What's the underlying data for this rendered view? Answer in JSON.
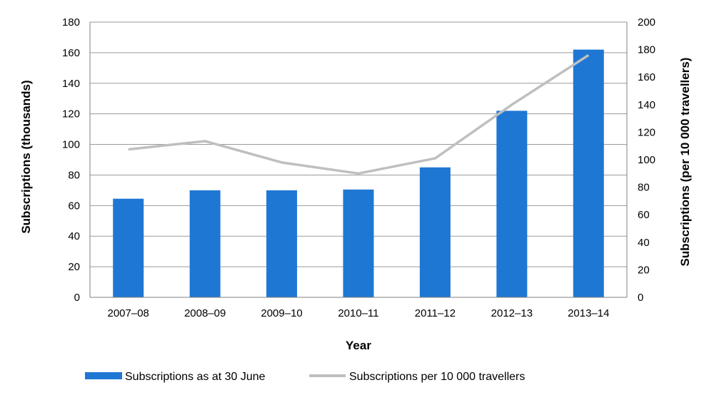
{
  "chart_data": {
    "type": "bar",
    "categories": [
      "2007–08",
      "2008–09",
      "2009–10",
      "2010–11",
      "2011–12",
      "2012–13",
      "2013–14"
    ],
    "xlabel": "Year",
    "ylabel": "Subscriptions (thousands)",
    "y2label": "Subscriptions (per 10 000 travellers)",
    "ylim": [
      0,
      180
    ],
    "y2lim": [
      0,
      200
    ],
    "yticks": [
      0,
      20,
      40,
      60,
      80,
      100,
      120,
      140,
      160,
      180
    ],
    "y2ticks": [
      0,
      20,
      40,
      60,
      80,
      100,
      120,
      140,
      160,
      180,
      200
    ],
    "grid": true,
    "legend_position": "bottom",
    "series": [
      {
        "name": "Subscriptions as at 30 June",
        "type": "bar",
        "axis": "left",
        "color": "#1f77d4",
        "values": [
          64.5,
          70,
          70,
          70.5,
          85,
          122,
          162
        ]
      },
      {
        "name": "Subscriptions per 10 000 travellers",
        "type": "line",
        "axis": "right",
        "color": "#bfbfbf",
        "values": [
          107.5,
          113.5,
          98,
          90,
          101,
          140,
          176
        ]
      }
    ]
  }
}
